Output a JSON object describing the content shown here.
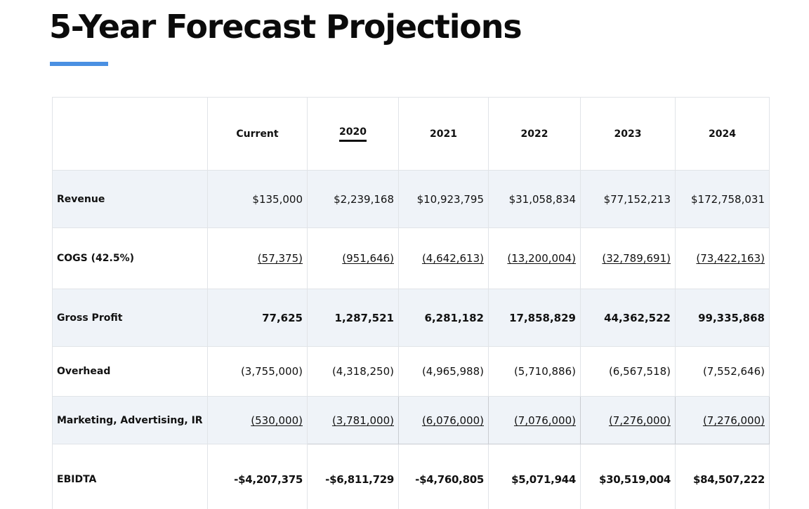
{
  "title": "5-Year Forecast Projections",
  "accent_color": "#4a90e2",
  "table": {
    "headers": [
      "",
      "Current",
      "2020",
      "2021",
      "2022",
      "2023",
      "2024"
    ],
    "active_header_index": 2,
    "rows": [
      {
        "label": "Revenue",
        "values": [
          "$135,000",
          "$2,239,168",
          "$10,923,795",
          "$31,058,834",
          "$77,152,213",
          "$172,758,031"
        ]
      },
      {
        "label": "COGS (42.5%)",
        "values": [
          "(57,375)",
          "(951,646)",
          "(4,642,613)",
          "(13,200,004)",
          "(32,789,691)",
          "(73,422,163)"
        ]
      },
      {
        "label": "Gross Profit",
        "values": [
          "77,625",
          "1,287,521",
          "6,281,182",
          "17,858,829",
          "44,362,522",
          "99,335,868"
        ]
      },
      {
        "label": "Overhead",
        "values": [
          "(3,755,000)",
          "(4,318,250)",
          "(4,965,988)",
          "(5,710,886)",
          "(6,567,518)",
          "(7,552,646)"
        ]
      },
      {
        "label": "Marketing, Advertising, IR",
        "values": [
          "(530,000)",
          "(3,781,000)",
          "(6,076,000)",
          "(7,076,000)",
          "(7,276,000)",
          "(7,276,000)"
        ]
      },
      {
        "label": "EBIDTA",
        "values": [
          "-$4,207,375",
          "-$6,811,729",
          "-$4,760,805",
          "$5,071,944",
          "$30,519,004",
          "$84,507,222"
        ]
      }
    ]
  }
}
